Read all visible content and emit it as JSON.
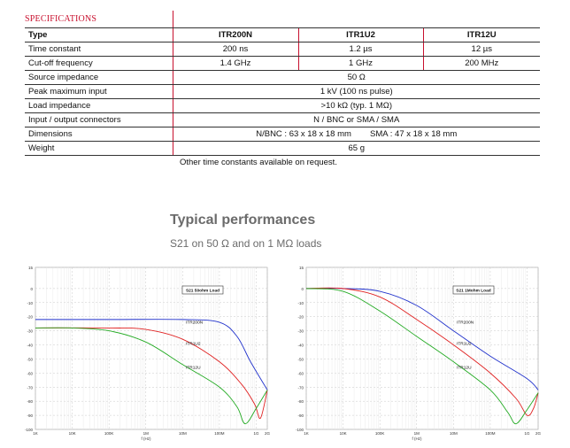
{
  "specifications": {
    "title": "SPECIFICATIONS",
    "columns": [
      "Type",
      "ITR200N",
      "ITR1U2",
      "ITR12U"
    ],
    "rows": [
      {
        "label": "Time constant",
        "values": [
          "200 ns",
          "1.2 µs",
          "12 µs"
        ]
      },
      {
        "label": "Cut-off frequency",
        "values": [
          "1.4 GHz",
          "1 GHz",
          "200 MHz"
        ]
      },
      {
        "label": "Source impedance",
        "merged": "50 Ω"
      },
      {
        "label": "Peak maximum input",
        "merged": "1 kV (100 ns pulse)"
      },
      {
        "label": "Load impedance",
        "merged": ">10 kΩ  (typ. 1 MΩ)"
      },
      {
        "label": "Input / output connectors",
        "merged": "N / BNC  or  SMA / SMA"
      },
      {
        "label": "Dimensions",
        "merged": "N/BNC : 63 x 18 x 18 mm        SMA : 47 x 18 x 18 mm"
      },
      {
        "label": "Weight",
        "merged": "65 g"
      }
    ],
    "note": "Other time constants available on request."
  },
  "performance": {
    "title": "Typical performances",
    "subtitle": "S21 on 50 Ω and on 1 MΩ loads"
  },
  "colors": {
    "red_accent": "#c8102e",
    "itr200n": "#2233cc",
    "itr1u2": "#e02020",
    "itr12u": "#22aa22"
  },
  "chart_data": [
    {
      "type": "line",
      "title": "S21 50ohm Load",
      "xlabel": "f (Hz)",
      "x_ticks": [
        "1K",
        "10K",
        "100K",
        "1M",
        "10M",
        "100M",
        "1G",
        "2G"
      ],
      "x_log_range": [
        3,
        9.3
      ],
      "y_ticks": [
        "15",
        "0",
        "-10",
        "-20",
        "-30",
        "-40",
        "-50",
        "-60",
        "-70",
        "-80",
        "-90",
        "-100"
      ],
      "ylim": [
        -100,
        10
      ],
      "grid": true,
      "series": [
        {
          "name": "ITR200N",
          "x": [
            1000,
            100000,
            10000000,
            100000000,
            300000000,
            700000000,
            2000000000
          ],
          "y": [
            -22,
            -22,
            -22,
            -24,
            -34,
            -52,
            -72
          ]
        },
        {
          "name": "ITR1U2",
          "x": [
            1000,
            100000,
            1000000,
            10000000,
            100000000,
            400000000,
            900000000,
            1300000000,
            2000000000
          ],
          "y": [
            -28,
            -28,
            -29,
            -36,
            -52,
            -68,
            -82,
            -92,
            -72
          ]
        },
        {
          "name": "ITR12U",
          "x": [
            1000,
            10000,
            100000,
            1000000,
            10000000,
            100000000,
            300000000,
            500000000,
            1000000000,
            2000000000
          ],
          "y": [
            -28,
            -28,
            -30,
            -38,
            -54,
            -70,
            -84,
            -96,
            -85,
            -72
          ]
        }
      ],
      "label_positions_words": "labels at the right end of each curve"
    },
    {
      "type": "line",
      "title": "S21 1Mohm Load",
      "xlabel": "f (Hz)",
      "x_ticks": [
        "1K",
        "10K",
        "100K",
        "1M",
        "10M",
        "100M",
        "1G",
        "2G"
      ],
      "x_log_range": [
        3,
        9.3
      ],
      "y_ticks": [
        "15",
        "0",
        "-10",
        "-20",
        "-30",
        "-40",
        "-50",
        "-60",
        "-70",
        "-80",
        "-90",
        "-100"
      ],
      "ylim": [
        -100,
        10
      ],
      "grid": true,
      "series": [
        {
          "name": "ITR200N",
          "x": [
            1000,
            10000,
            100000,
            1000000,
            10000000,
            100000000,
            1000000000,
            2000000000
          ],
          "y": [
            0,
            0,
            -2,
            -12,
            -30,
            -48,
            -64,
            -72
          ]
        },
        {
          "name": "ITR1U2",
          "x": [
            1000,
            10000,
            100000,
            1000000,
            10000000,
            100000000,
            500000000,
            1000000000,
            1500000000,
            2000000000
          ],
          "y": [
            0,
            0,
            -6,
            -22,
            -40,
            -60,
            -78,
            -90,
            -85,
            -74
          ]
        },
        {
          "name": "ITR12U",
          "x": [
            1000,
            10000,
            100000,
            1000000,
            10000000,
            100000000,
            300000000,
            500000000,
            1000000000,
            2000000000
          ],
          "y": [
            0,
            -2,
            -16,
            -34,
            -52,
            -72,
            -88,
            -96,
            -86,
            -74
          ]
        }
      ]
    }
  ]
}
